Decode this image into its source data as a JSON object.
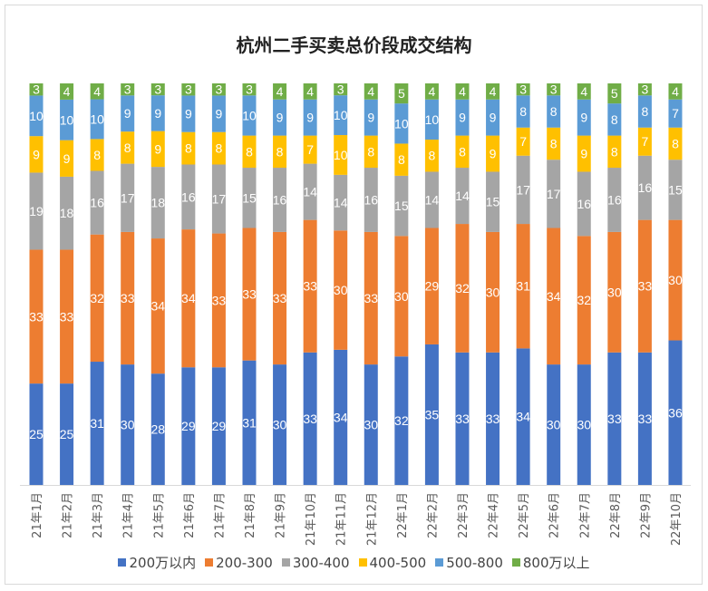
{
  "chart_data": {
    "type": "bar",
    "stacked": "percent",
    "title": "杭州二手买卖总价段成交结构",
    "categories": [
      "21年1月",
      "21年2月",
      "21年3月",
      "21年4月",
      "21年5月",
      "21年6月",
      "21年7月",
      "21年8月",
      "21年9月",
      "21年10月",
      "21年11月",
      "21年12月",
      "22年1月",
      "22年2月",
      "22年3月",
      "22年4月",
      "22年5月",
      "22年6月",
      "22年7月",
      "22年8月",
      "22年9月",
      "22年10月"
    ],
    "series": [
      {
        "name": "200万以内",
        "color": "#4472c4",
        "values": [
          25,
          25,
          31,
          30,
          28,
          29,
          29,
          31,
          30,
          33,
          34,
          30,
          32,
          35,
          33,
          33,
          34,
          30,
          30,
          33,
          33,
          36
        ]
      },
      {
        "name": "200-300",
        "color": "#ed7d31",
        "values": [
          33,
          33,
          32,
          33,
          34,
          34,
          33,
          33,
          33,
          33,
          30,
          33,
          30,
          29,
          32,
          30,
          31,
          34,
          32,
          30,
          33,
          30
        ]
      },
      {
        "name": "300-400",
        "color": "#a5a5a5",
        "values": [
          19,
          18,
          16,
          17,
          18,
          16,
          17,
          15,
          16,
          14,
          14,
          16,
          15,
          14,
          14,
          15,
          17,
          17,
          16,
          16,
          16,
          15
        ]
      },
      {
        "name": "400-500",
        "color": "#ffc000",
        "values": [
          9,
          9,
          8,
          8,
          9,
          8,
          8,
          8,
          8,
          7,
          10,
          8,
          8,
          8,
          8,
          9,
          7,
          8,
          9,
          8,
          7,
          8
        ]
      },
      {
        "name": "500-800",
        "color": "#5b9bd5",
        "values": [
          10,
          10,
          10,
          9,
          9,
          9,
          9,
          10,
          9,
          9,
          10,
          9,
          10,
          10,
          9,
          9,
          8,
          8,
          9,
          8,
          8,
          7
        ]
      },
      {
        "name": "800万以上",
        "color": "#70ad47",
        "values": [
          3,
          4,
          4,
          3,
          3,
          3,
          3,
          3,
          4,
          4,
          3,
          4,
          5,
          4,
          4,
          4,
          3,
          3,
          4,
          5,
          3,
          4
        ]
      }
    ],
    "legend": "bottom",
    "grid": false,
    "data_labels": true
  }
}
